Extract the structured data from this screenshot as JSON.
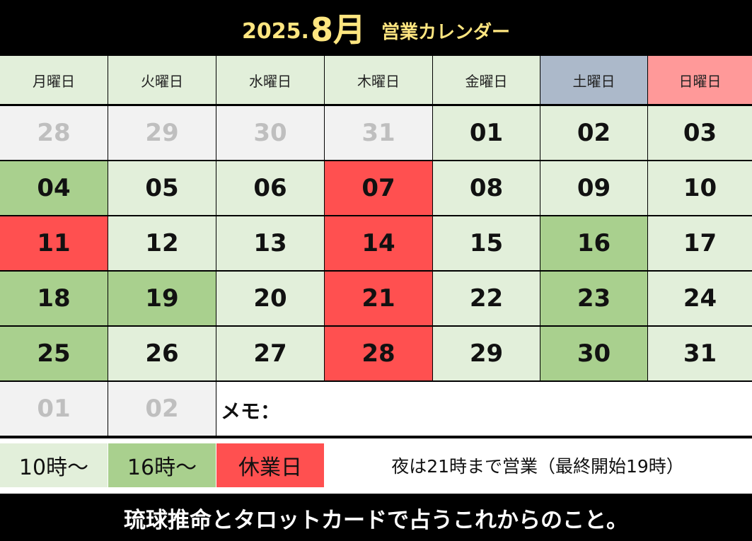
{
  "header": {
    "year": "2025.",
    "month": "8月",
    "subtitle": "営業カレンダー"
  },
  "weekdays": [
    {
      "label": "月曜日",
      "color": "#e2efda"
    },
    {
      "label": "火曜日",
      "color": "#e2efda"
    },
    {
      "label": "水曜日",
      "color": "#e2efda"
    },
    {
      "label": "木曜日",
      "color": "#e2efda"
    },
    {
      "label": "金曜日",
      "color": "#e2efda"
    },
    {
      "label": "土曜日",
      "color": "#acb9ca"
    },
    {
      "label": "日曜日",
      "color": "#ff9999"
    }
  ],
  "colors": {
    "light": "#e2efda",
    "green": "#a9d08e",
    "red": "#ff5050",
    "outside": "#f2f2f2",
    "memo": "#ffffff"
  },
  "weeks": [
    [
      {
        "d": "28",
        "t": "outside"
      },
      {
        "d": "29",
        "t": "outside"
      },
      {
        "d": "30",
        "t": "outside"
      },
      {
        "d": "31",
        "t": "outside"
      },
      {
        "d": "01",
        "t": "light"
      },
      {
        "d": "02",
        "t": "light"
      },
      {
        "d": "03",
        "t": "light"
      }
    ],
    [
      {
        "d": "04",
        "t": "green"
      },
      {
        "d": "05",
        "t": "light"
      },
      {
        "d": "06",
        "t": "light"
      },
      {
        "d": "07",
        "t": "red"
      },
      {
        "d": "08",
        "t": "light"
      },
      {
        "d": "09",
        "t": "light"
      },
      {
        "d": "10",
        "t": "light"
      }
    ],
    [
      {
        "d": "11",
        "t": "red"
      },
      {
        "d": "12",
        "t": "light"
      },
      {
        "d": "13",
        "t": "light"
      },
      {
        "d": "14",
        "t": "red"
      },
      {
        "d": "15",
        "t": "light"
      },
      {
        "d": "16",
        "t": "green"
      },
      {
        "d": "17",
        "t": "light"
      }
    ],
    [
      {
        "d": "18",
        "t": "green"
      },
      {
        "d": "19",
        "t": "green"
      },
      {
        "d": "20",
        "t": "light"
      },
      {
        "d": "21",
        "t": "red"
      },
      {
        "d": "22",
        "t": "light"
      },
      {
        "d": "23",
        "t": "green"
      },
      {
        "d": "24",
        "t": "light"
      }
    ],
    [
      {
        "d": "25",
        "t": "green"
      },
      {
        "d": "26",
        "t": "light"
      },
      {
        "d": "27",
        "t": "light"
      },
      {
        "d": "28",
        "t": "red"
      },
      {
        "d": "29",
        "t": "light"
      },
      {
        "d": "30",
        "t": "green"
      },
      {
        "d": "31",
        "t": "light"
      }
    ],
    [
      {
        "d": "01",
        "t": "outside"
      },
      {
        "d": "02",
        "t": "outside"
      }
    ]
  ],
  "memo_label": "メモ：",
  "legend": [
    {
      "label": "10時～",
      "t": "light"
    },
    {
      "label": "16時～",
      "t": "green"
    },
    {
      "label": "休業日",
      "t": "red"
    }
  ],
  "legend_note": "夜は21時まで営業（最終開始19時）",
  "footer": "琉球推命とタロットカードで占うこれからのこと。"
}
